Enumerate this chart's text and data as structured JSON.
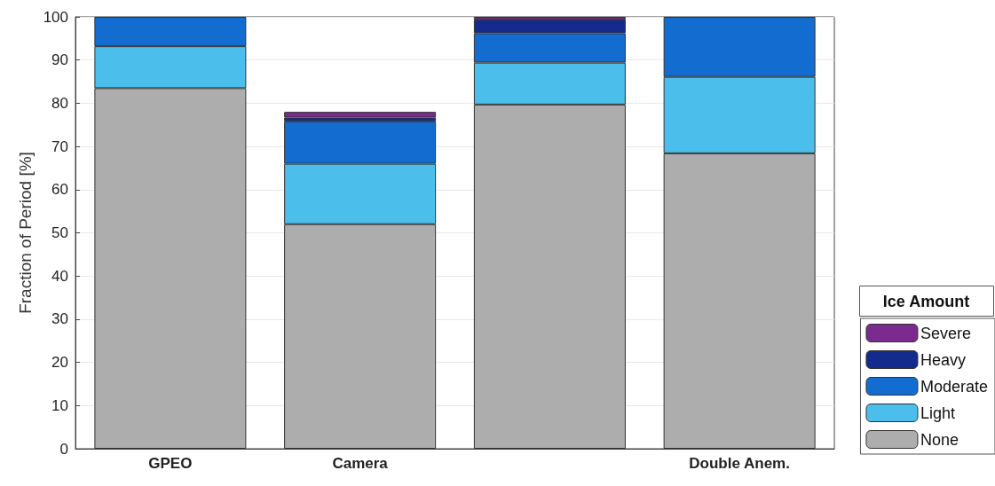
{
  "chart_data": {
    "type": "bar",
    "stacked": true,
    "ylabel": "Fraction of Period [%]",
    "legend_title": "Ice Amount",
    "categories": [
      "GPEO",
      "Camera",
      null,
      "Double Anem."
    ],
    "series": [
      {
        "name": "None",
        "color": "#adadad",
        "values": [
          83.5,
          52,
          79.7,
          68.4
        ]
      },
      {
        "name": "Light",
        "color": "#4bbeeb",
        "values": [
          9.7,
          14,
          9.7,
          17.7
        ]
      },
      {
        "name": "Moderate",
        "color": "#136ccf",
        "values": [
          6.8,
          9.8,
          6.8,
          13.9
        ]
      },
      {
        "name": "Heavy",
        "color": "#142a8c",
        "values": [
          0,
          0.9,
          3.2,
          0
        ]
      },
      {
        "name": "Severe",
        "color": "#7b2a8e",
        "values": [
          0,
          1.3,
          0.6,
          0
        ]
      }
    ],
    "ylim": [
      0,
      100
    ],
    "yticks": [
      0,
      10,
      20,
      30,
      40,
      50,
      60,
      70,
      80,
      90,
      100
    ],
    "grid": "y",
    "legend": "bottom right"
  }
}
